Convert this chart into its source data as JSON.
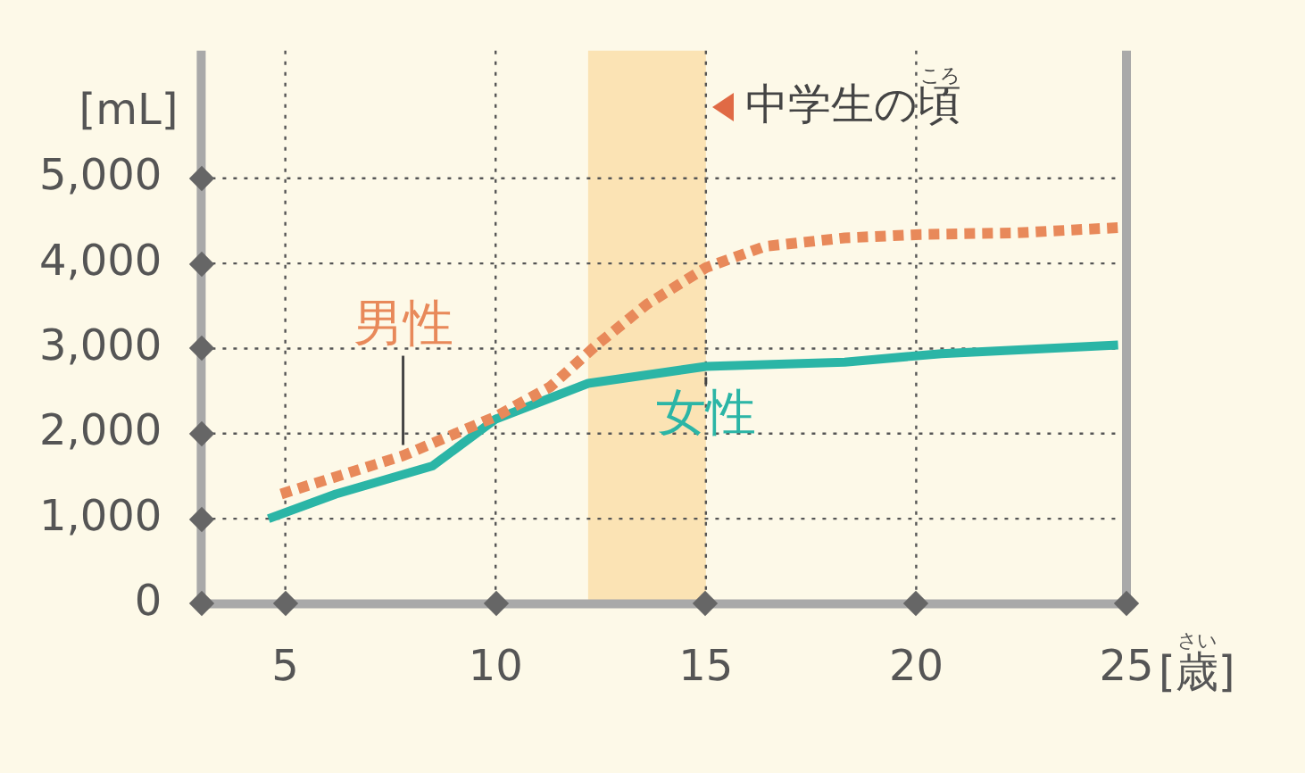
{
  "chart_data": {
    "type": "line",
    "xlabel": "[歳]",
    "ylabel": "[mL]",
    "xlim": [
      3,
      25
    ],
    "xticks": [
      5,
      10,
      15,
      20,
      25
    ],
    "ylim": [
      0,
      6500
    ],
    "yticks": [
      0,
      {
        "value": 1000,
        "label": "1,000"
      },
      {
        "value": 2000,
        "label": "2,000"
      },
      {
        "value": 3000,
        "label": "3,000"
      },
      {
        "value": 4000,
        "label": "4,000"
      },
      {
        "value": 5000,
        "label": "5,000"
      }
    ],
    "grid": true,
    "legend": false,
    "marker": "none",
    "bands": [
      {
        "axis": "x",
        "from": 12.2,
        "to": 15,
        "label": "中学生の頃",
        "color": "#fbe3b4"
      }
    ],
    "annotations": [
      "ころ",
      "さい"
    ],
    "series": [
      {
        "name": "男性",
        "color": "#e8895a",
        "line_style": "dotted",
        "x": [
          4.9,
          7.8,
          10,
          11.3,
          12.4,
          13.6,
          15,
          16.4,
          18.3,
          20.1,
          22.4,
          24.8
        ],
        "values": [
          1290,
          1740,
          2200,
          2550,
          3040,
          3520,
          3950,
          4200,
          4300,
          4340,
          4360,
          4420
        ]
      },
      {
        "name": "女性",
        "color": "#2bb5a6",
        "line_style": "solid",
        "x": [
          4.6,
          6.2,
          8.5,
          10,
          12.2,
          15,
          18.3,
          20.6,
          24.8
        ],
        "values": [
          1000,
          1290,
          1620,
          2170,
          2590,
          2790,
          2840,
          2940,
          3040
        ]
      }
    ]
  }
}
